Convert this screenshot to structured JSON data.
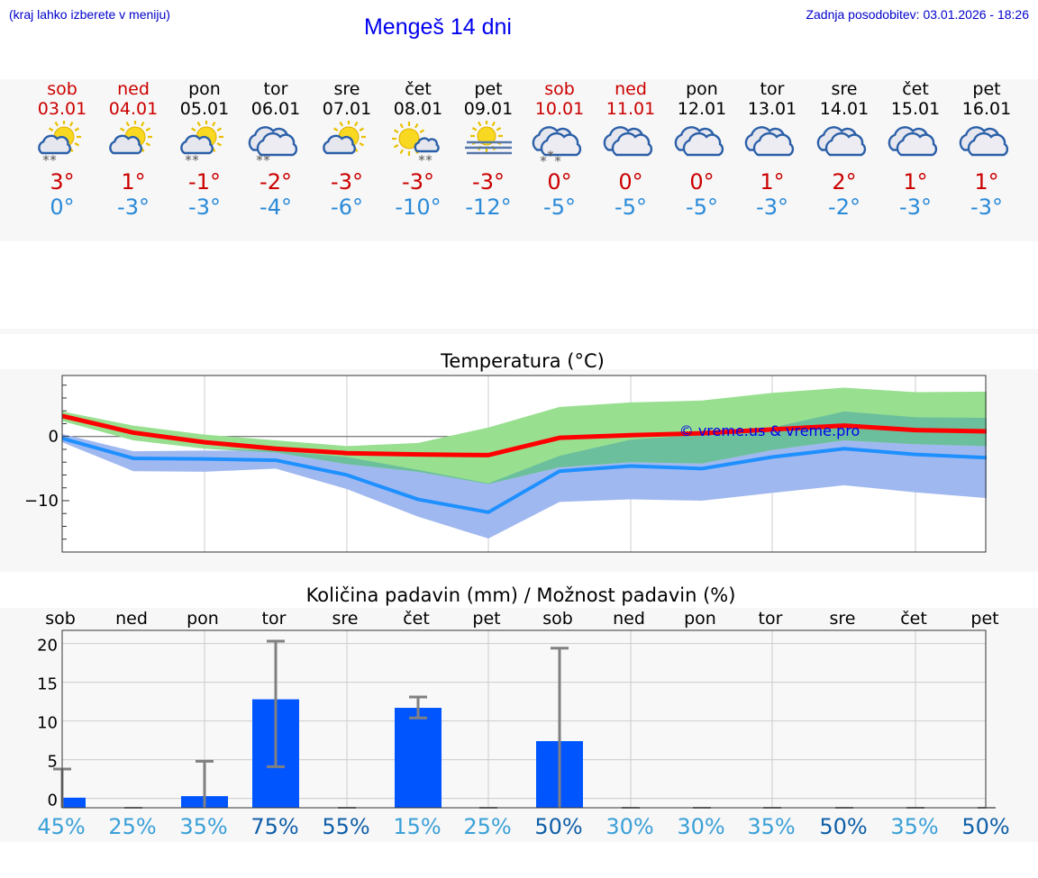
{
  "header": {
    "note": "(kraj lahko izberete v meniju)",
    "title": "Mengeš 14 dni",
    "updated": "Zadnja posodobitev: 03.01.2026 - 18:26"
  },
  "days": [
    {
      "name": "sob",
      "date": "03.01",
      "weekend": true,
      "icon": "partly-sunny-snow-icon",
      "sun": true,
      "cloud": "small",
      "precip": "snow2",
      "max": "3°",
      "min": "0°"
    },
    {
      "name": "ned",
      "date": "04.01",
      "weekend": true,
      "icon": "partly-sunny-icon",
      "sun": true,
      "cloud": "small",
      "precip": "none",
      "max": "1°",
      "min": "-3°"
    },
    {
      "name": "pon",
      "date": "05.01",
      "weekend": false,
      "icon": "partly-sunny-snow-icon",
      "sun": true,
      "cloud": "small",
      "precip": "snow2",
      "max": "-1°",
      "min": "-3°"
    },
    {
      "name": "tor",
      "date": "06.01",
      "weekend": false,
      "icon": "cloudy-snow-icon",
      "sun": false,
      "cloud": "big",
      "precip": "snow2",
      "max": "-2°",
      "min": "-4°"
    },
    {
      "name": "sre",
      "date": "07.01",
      "weekend": false,
      "icon": "partly-sunny-icon",
      "sun": true,
      "cloud": "small",
      "precip": "none",
      "max": "-3°",
      "min": "-6°"
    },
    {
      "name": "čet",
      "date": "08.01",
      "weekend": false,
      "icon": "sunny-cloud-snow-icon",
      "sun": true,
      "cloud": "tiny",
      "precip": "snow2r",
      "max": "-3°",
      "min": "-10°"
    },
    {
      "name": "pet",
      "date": "09.01",
      "weekend": false,
      "icon": "sun-fog-icon",
      "sun": true,
      "cloud": "fog",
      "precip": "none",
      "max": "-3°",
      "min": "-12°"
    },
    {
      "name": "sob",
      "date": "10.01",
      "weekend": true,
      "icon": "cloudy-heavy-snow-icon",
      "sun": false,
      "cloud": "big",
      "precip": "snow3",
      "max": "0°",
      "min": "-5°"
    },
    {
      "name": "ned",
      "date": "11.01",
      "weekend": true,
      "icon": "cloudy-icon",
      "sun": false,
      "cloud": "big",
      "precip": "none",
      "max": "0°",
      "min": "-5°"
    },
    {
      "name": "pon",
      "date": "12.01",
      "weekend": false,
      "icon": "cloudy-icon",
      "sun": false,
      "cloud": "big",
      "precip": "none",
      "max": "0°",
      "min": "-5°"
    },
    {
      "name": "tor",
      "date": "13.01",
      "weekend": false,
      "icon": "cloudy-icon",
      "sun": false,
      "cloud": "big",
      "precip": "none",
      "max": "1°",
      "min": "-3°"
    },
    {
      "name": "sre",
      "date": "14.01",
      "weekend": false,
      "icon": "cloudy-icon",
      "sun": false,
      "cloud": "big",
      "precip": "none",
      "max": "2°",
      "min": "-2°"
    },
    {
      "name": "čet",
      "date": "15.01",
      "weekend": false,
      "icon": "cloudy-icon",
      "sun": false,
      "cloud": "big",
      "precip": "none",
      "max": "1°",
      "min": "-3°"
    },
    {
      "name": "pet",
      "date": "16.01",
      "weekend": false,
      "icon": "cloudy-icon",
      "sun": false,
      "cloud": "big",
      "precip": "none",
      "max": "1°",
      "min": "-3°"
    }
  ],
  "colors": {
    "weekend": "#cc0000",
    "weekday": "#000000",
    "max": "#cc0000",
    "min": "#2a8ad8",
    "maxLine": "#ff0000",
    "minLine": "#1e90ff",
    "maxBand": "#98e090",
    "minBand": "#a0b8f0",
    "overlap": "#6cbf9c",
    "bar": "#0055ff",
    "whisker": "#808080",
    "probLow": "#3aa0d8",
    "probHigh": "#0f5fa8"
  },
  "chart_data": [
    {
      "type": "line",
      "title": "Temperatura (°C)",
      "x": [
        "03.01",
        "04.01",
        "05.01",
        "06.01",
        "07.01",
        "08.01",
        "09.01",
        "10.01",
        "11.01",
        "12.01",
        "13.01",
        "14.01",
        "15.01",
        "16.01"
      ],
      "ylim": [
        -18,
        9.5
      ],
      "yticks": [
        {
          "v": 0,
          "label": "0"
        },
        {
          "v": -10,
          "label": "−10"
        }
      ],
      "grid": true,
      "watermark": "© vreme.us & vreme.pro",
      "series": [
        {
          "role": "max",
          "values": [
            3.2,
            0.6,
            -0.9,
            -1.9,
            -2.6,
            -2.8,
            -2.9,
            -0.2,
            0.2,
            0.5,
            1.1,
            1.7,
            1.0,
            0.8
          ]
        },
        {
          "role": "min",
          "values": [
            -0.3,
            -3.4,
            -3.5,
            -3.7,
            -6.0,
            -9.8,
            -11.8,
            -5.4,
            -4.6,
            -5.0,
            -3.2,
            -1.9,
            -2.8,
            -3.3
          ]
        }
      ],
      "bands": [
        {
          "role": "max-range",
          "low": [
            2.4,
            -0.6,
            -1.9,
            -2.5,
            -4.3,
            -5.5,
            -7.4,
            -4.8,
            -4.0,
            -4.2,
            -2.1,
            -0.6,
            -1.2,
            -1.5
          ],
          "high": [
            3.9,
            1.7,
            0.3,
            -0.6,
            -1.5,
            -1.0,
            1.4,
            4.6,
            5.3,
            5.6,
            6.8,
            7.6,
            6.9,
            7.0
          ]
        },
        {
          "role": "min-range",
          "low": [
            -0.9,
            -5.4,
            -5.5,
            -5.0,
            -8.2,
            -12.5,
            -15.9,
            -10.2,
            -9.8,
            -10.0,
            -8.8,
            -7.6,
            -8.7,
            -9.6
          ],
          "high": [
            0.4,
            -2.3,
            -2.2,
            -2.2,
            -3.2,
            -5.2,
            -7.3,
            -3.0,
            -0.5,
            0.3,
            1.4,
            3.9,
            3.0,
            2.9
          ]
        }
      ]
    },
    {
      "type": "bar",
      "title": "Količina padavin (mm) / Možnost padavin (%)",
      "categories": [
        "sob",
        "ned",
        "pon",
        "tor",
        "sre",
        "čet",
        "pet",
        "sob",
        "ned",
        "pon",
        "tor",
        "sre",
        "čet",
        "pet"
      ],
      "values": [
        0.1,
        0,
        0.3,
        12.8,
        0,
        11.7,
        0,
        7.4,
        0,
        0,
        0,
        0,
        0,
        0
      ],
      "error_high": [
        3.8,
        0,
        4.8,
        20.3,
        0,
        13.1,
        0,
        19.4,
        0,
        0,
        0,
        0,
        0,
        0
      ],
      "error_low": [
        0,
        0,
        0,
        4.1,
        0,
        10.4,
        0,
        0,
        0,
        0,
        0,
        0,
        0,
        0
      ],
      "ylim": [
        -1.2,
        21.7
      ],
      "yticks": [
        0,
        5,
        10,
        15,
        20
      ],
      "grid": true,
      "probability": [
        "45%",
        "25%",
        "35%",
        "75%",
        "55%",
        "15%",
        "25%",
        "50%",
        "30%",
        "30%",
        "35%",
        "50%",
        "35%",
        "50%"
      ],
      "probability_values": [
        45,
        25,
        35,
        75,
        55,
        15,
        25,
        50,
        30,
        30,
        35,
        50,
        35,
        50
      ]
    }
  ]
}
